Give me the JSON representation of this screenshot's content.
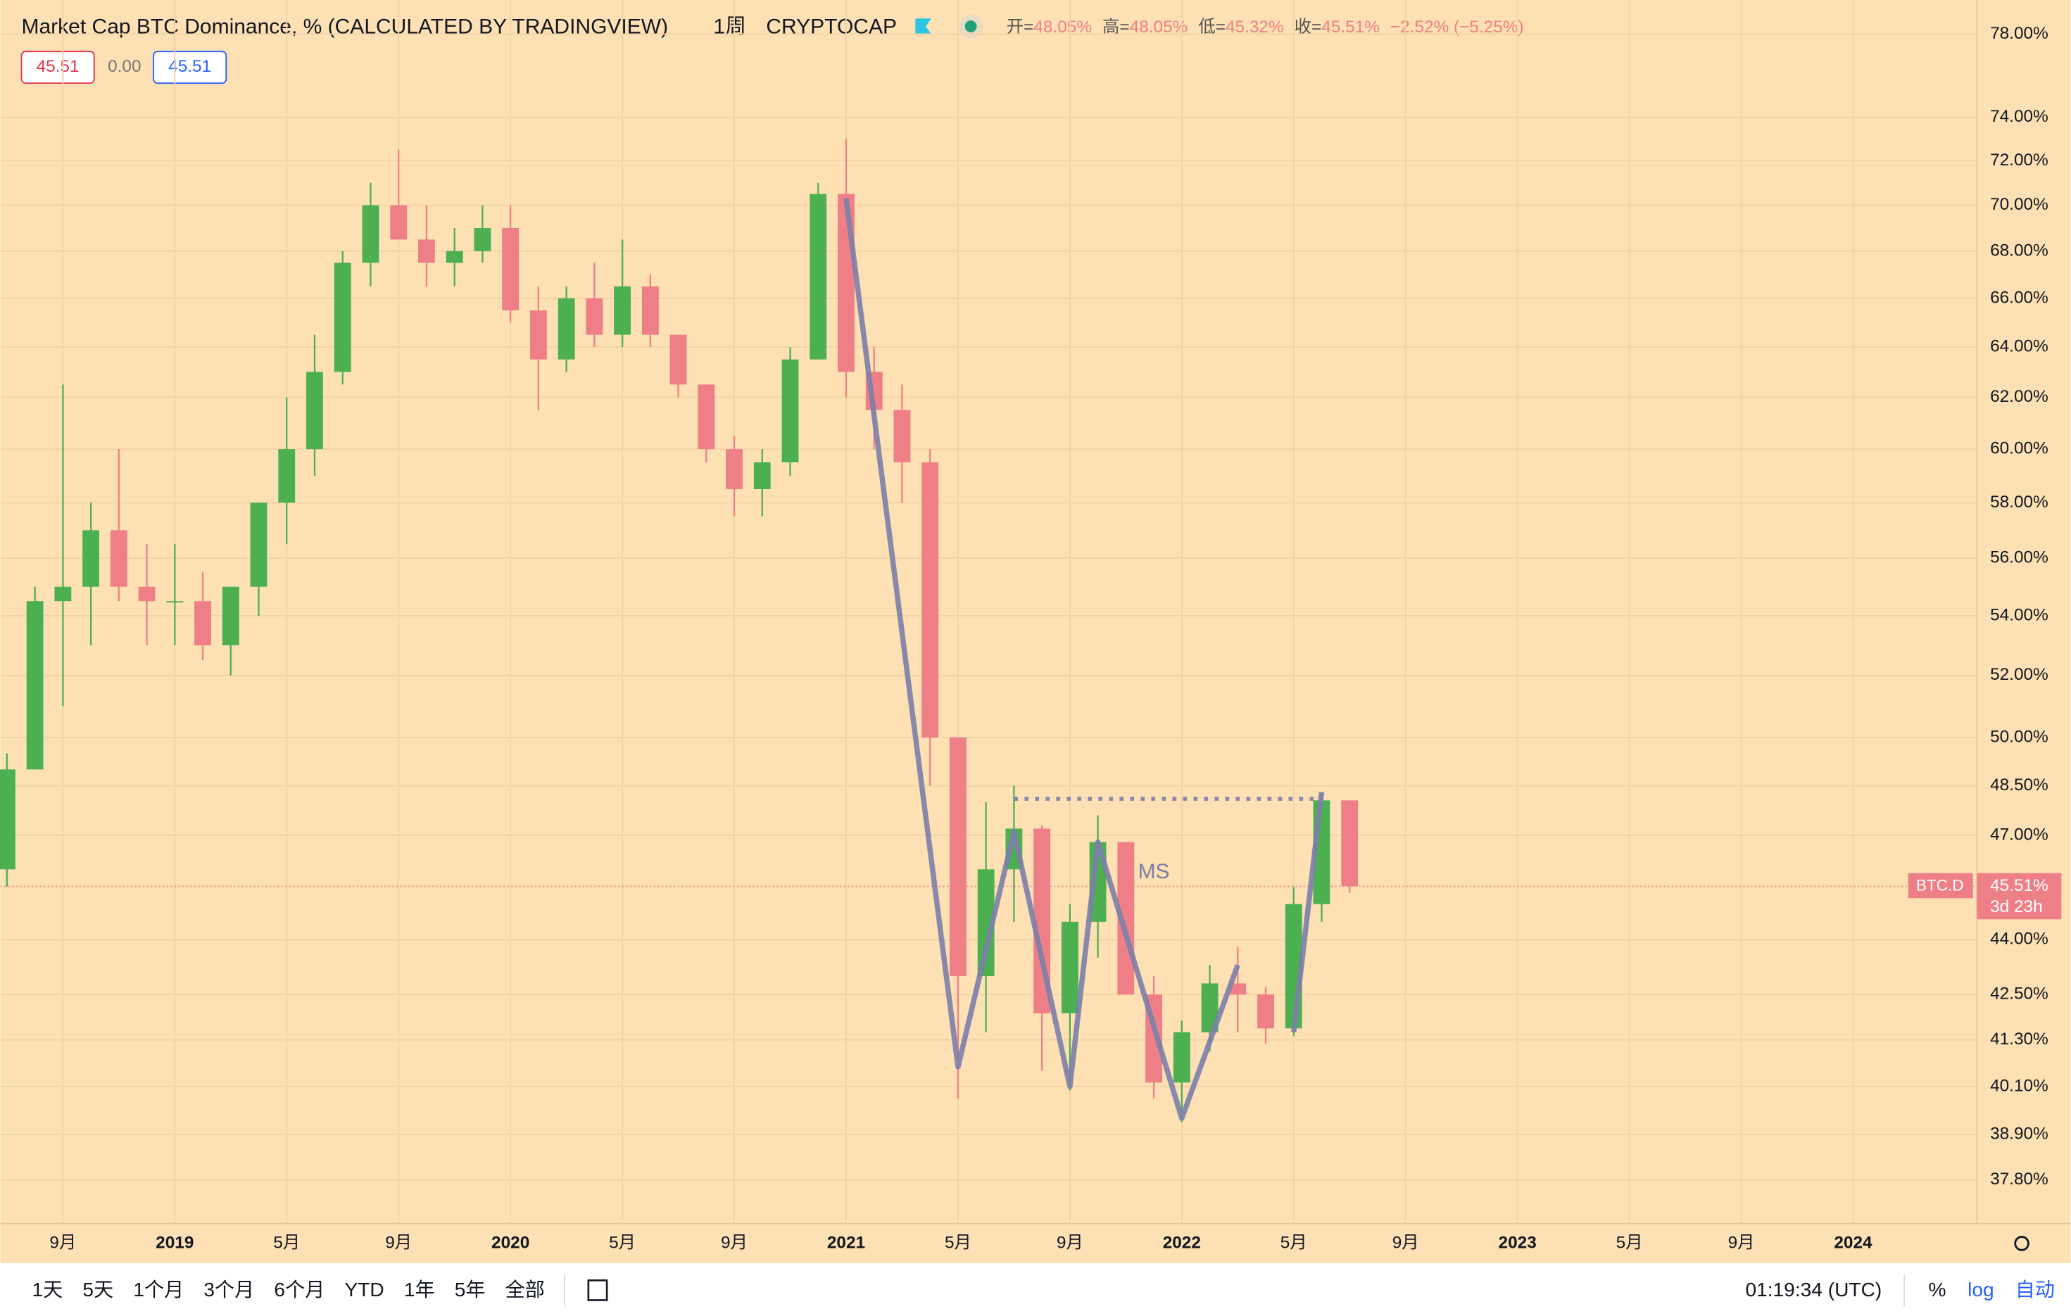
{
  "header": {
    "title": "Market Cap BTC Dominance, % (CALCULATED BY TRADINGVIEW)",
    "interval": "1周",
    "exchange": "CRYPTOCAP",
    "ohlc": [
      {
        "label": "开=",
        "value": "48.05%"
      },
      {
        "label": "高=",
        "value": "48.05%"
      },
      {
        "label": "低=",
        "value": "45.32%"
      },
      {
        "label": "收=",
        "value": "45.51%"
      }
    ],
    "change": "−2.52% (−5.25%)",
    "badges": [
      "45.51",
      "0.00",
      "45.51"
    ]
  },
  "chart_data": {
    "type": "candlestick",
    "log_scale": true,
    "grid": true,
    "up_color": "#4caf50",
    "down_color": "#ef7f86",
    "x": [
      "2018-07",
      "2018-08",
      "2018-09",
      "2018-10",
      "2018-11",
      "2018-12",
      "2019-01",
      "2019-02",
      "2019-03",
      "2019-04",
      "2019-05",
      "2019-06",
      "2019-07",
      "2019-08",
      "2019-09",
      "2019-10",
      "2019-11",
      "2019-12",
      "2020-01",
      "2020-02",
      "2020-03",
      "2020-04",
      "2020-05",
      "2020-06",
      "2020-07",
      "2020-08",
      "2020-09",
      "2020-10",
      "2020-11",
      "2020-12",
      "2021-01",
      "2021-02",
      "2021-03",
      "2021-04",
      "2021-05",
      "2021-06",
      "2021-07",
      "2021-08",
      "2021-09",
      "2021-10",
      "2021-11",
      "2021-12",
      "2022-01",
      "2022-02",
      "2022-03",
      "2022-04",
      "2022-05",
      "2022-06",
      "2022-07"
    ],
    "open": [
      46,
      49,
      54.5,
      55,
      57,
      55,
      54.5,
      54.5,
      53,
      55,
      58,
      60,
      63,
      67.5,
      70,
      68.5,
      67.5,
      68,
      69,
      65.5,
      63.5,
      66,
      64.5,
      66.5,
      64.5,
      62.5,
      60,
      58.5,
      59.5,
      63.5,
      70.5,
      63,
      61.5,
      59.5,
      50,
      43,
      46,
      47.2,
      42,
      44.5,
      46.8,
      42.5,
      40.2,
      41.5,
      42.8,
      42.5,
      41.6,
      45,
      48.05
    ],
    "high": [
      49.5,
      55,
      62.5,
      58,
      60,
      56.5,
      56.5,
      55.5,
      55,
      58,
      62,
      64.5,
      68,
      71,
      72.5,
      70,
      69,
      70,
      70,
      66.5,
      66.5,
      67.5,
      68.5,
      67,
      64.5,
      62.5,
      60.5,
      60,
      64,
      71,
      73,
      64,
      62.5,
      60,
      50,
      48,
      48.5,
      47.3,
      45,
      47.6,
      46.8,
      43,
      41.8,
      43.3,
      43.8,
      42.7,
      45.5,
      48.3,
      48.05
    ],
    "low": [
      45.5,
      49,
      51,
      53,
      54.5,
      53,
      53,
      52.5,
      52,
      54,
      56.5,
      59,
      62.5,
      66.5,
      68.5,
      66.5,
      66.5,
      67.5,
      65,
      61.5,
      63,
      64,
      64,
      64,
      62,
      59.5,
      57.5,
      57.5,
      59,
      63.5,
      62,
      60,
      58,
      48.5,
      39.8,
      41.5,
      44.5,
      40.5,
      40,
      43.5,
      42.5,
      39.8,
      39.2,
      41,
      41.5,
      41.2,
      41.4,
      44.5,
      45.32
    ],
    "close": [
      49,
      54.5,
      55,
      57,
      55,
      54.5,
      54.5,
      53,
      55,
      58,
      60,
      63,
      67.5,
      70,
      68.5,
      67.5,
      68,
      69,
      65.5,
      63.5,
      66,
      64.5,
      66.5,
      64.5,
      62.5,
      60,
      58.5,
      59.5,
      63.5,
      70.5,
      63,
      61.5,
      59.5,
      50,
      43,
      46,
      47.2,
      42,
      44.5,
      46.8,
      42.5,
      40.2,
      41.5,
      42.8,
      42.5,
      41.6,
      45,
      48.05,
      45.51
    ],
    "xlim": [
      "2018-07",
      "2024-05"
    ],
    "xticks": [
      {
        "value": "2018-09",
        "label": "9月"
      },
      {
        "value": "2019-01",
        "label": "2019"
      },
      {
        "value": "2019-05",
        "label": "5月"
      },
      {
        "value": "2019-09",
        "label": "9月"
      },
      {
        "value": "2020-01",
        "label": "2020"
      },
      {
        "value": "2020-05",
        "label": "5月"
      },
      {
        "value": "2020-09",
        "label": "9月"
      },
      {
        "value": "2021-01",
        "label": "2021"
      },
      {
        "value": "2021-05",
        "label": "5月"
      },
      {
        "value": "2021-09",
        "label": "9月"
      },
      {
        "value": "2022-01",
        "label": "2022"
      },
      {
        "value": "2022-05",
        "label": "5月"
      },
      {
        "value": "2022-09",
        "label": "9月"
      },
      {
        "value": "2023-01",
        "label": "2023"
      },
      {
        "value": "2023-05",
        "label": "5月"
      },
      {
        "value": "2023-09",
        "label": "9月"
      },
      {
        "value": "2024-01",
        "label": "2024"
      }
    ],
    "ylim": [
      36.77,
      79.7
    ],
    "yticks": [
      {
        "value": 37.8,
        "label": "37.80%"
      },
      {
        "value": 38.9,
        "label": "38.90%"
      },
      {
        "value": 40.1,
        "label": "40.10%"
      },
      {
        "value": 41.3,
        "label": "41.30%"
      },
      {
        "value": 42.5,
        "label": "42.50%"
      },
      {
        "value": 44,
        "label": "44.00%"
      },
      {
        "value": 47,
        "label": "47.00%"
      },
      {
        "value": 48.5,
        "label": "48.50%"
      },
      {
        "value": 50,
        "label": "50.00%"
      },
      {
        "value": 52,
        "label": "52.00%"
      },
      {
        "value": 54,
        "label": "54.00%"
      },
      {
        "value": 56,
        "label": "56.00%"
      },
      {
        "value": 58,
        "label": "58.00%"
      },
      {
        "value": 60,
        "label": "60.00%"
      },
      {
        "value": 62,
        "label": "62.00%"
      },
      {
        "value": 64,
        "label": "64.00%"
      },
      {
        "value": 66,
        "label": "66.00%"
      },
      {
        "value": 68,
        "label": "68.00%"
      },
      {
        "value": 70,
        "label": "70.00%"
      },
      {
        "value": 72,
        "label": "72.00%"
      },
      {
        "value": 74,
        "label": "74.00%"
      },
      {
        "value": 78,
        "label": "78.00%"
      }
    ],
    "drawing_color": "#7b7fa8",
    "drawings": [
      {
        "style": "solid",
        "x": [
          "2021-01",
          "2021-05",
          "2021-07",
          "2021-09",
          "2021-10",
          "2022-01",
          "2022-03"
        ],
        "y": [
          70.3,
          40.6,
          47.1,
          40.1,
          46.8,
          39.3,
          43.3
        ]
      },
      {
        "style": "solid",
        "x": [
          "2022-05",
          "2022-06"
        ],
        "y": [
          41.5,
          48.3
        ]
      },
      {
        "style": "dotted",
        "x": [
          "2021-07",
          "2022-06"
        ],
        "y": [
          48.1,
          48.1
        ]
      }
    ],
    "annotations": [
      {
        "text": "MS",
        "x": "2021-12",
        "y": 45.9
      }
    ],
    "last_price": {
      "symbol": "BTC.D",
      "value": 45.51,
      "label": "45.51%",
      "countdown": "3d 23h"
    }
  },
  "toolbar": {
    "ranges": [
      "1天",
      "5天",
      "1个月",
      "3个月",
      "6个月",
      "YTD",
      "1年",
      "5年",
      "全部"
    ],
    "clock": "01:19:34 (UTC)",
    "percent": "%",
    "log": "log",
    "auto": "自动"
  }
}
